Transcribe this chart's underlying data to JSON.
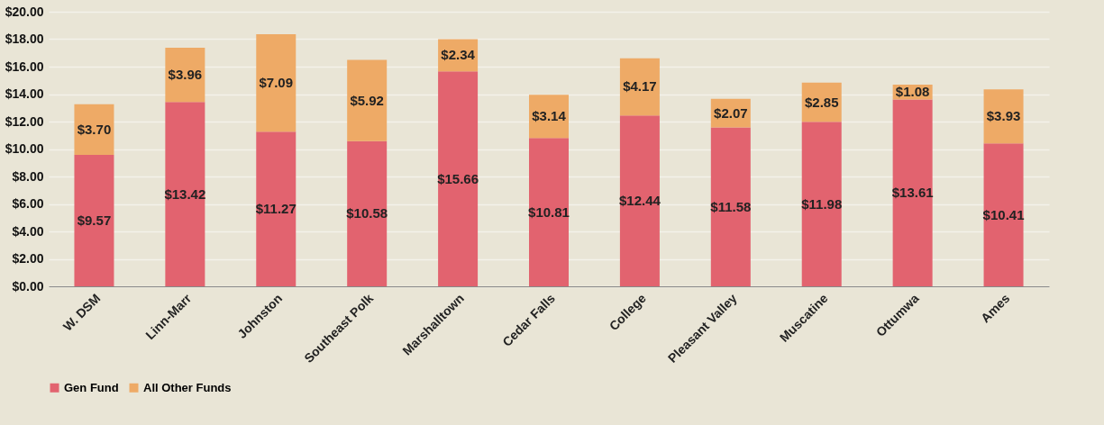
{
  "chart_data": {
    "type": "bar",
    "stacked": true,
    "categories": [
      "W. DSM",
      "Linn-Marr",
      "Johnston",
      "Southeast Polk",
      "Marshalltown",
      "Cedar Falls",
      "College",
      "Pleasant Valley",
      "Muscatine",
      "Ottumwa",
      "Ames"
    ],
    "series": [
      {
        "name": "Gen Fund",
        "color": "#e2636f",
        "values": [
          9.57,
          13.42,
          11.27,
          10.58,
          15.66,
          10.81,
          12.44,
          11.58,
          11.98,
          13.61,
          10.41
        ],
        "value_labels": [
          "$9.57",
          "$13.42",
          "$11.27",
          "$10.58",
          "$15.66",
          "$10.81",
          "$12.44",
          "$11.58",
          "$11.98",
          "$13.61",
          "$10.41"
        ]
      },
      {
        "name": "All Other Funds",
        "color": "#eeaa66",
        "values": [
          3.7,
          3.96,
          7.09,
          5.92,
          2.34,
          3.14,
          4.17,
          2.07,
          2.85,
          1.08,
          3.93
        ],
        "value_labels": [
          "$3.70",
          "$3.96",
          "$7.09",
          "$5.92",
          "$2.34",
          "$3.14",
          "$4.17",
          "$2.07",
          "$2.85",
          "$1.08",
          "$3.93"
        ]
      }
    ],
    "ylim": [
      0,
      20
    ],
    "yticks": [
      {
        "value": 0,
        "label": "$0.00"
      },
      {
        "value": 2,
        "label": "$2.00"
      },
      {
        "value": 4,
        "label": "$4.00"
      },
      {
        "value": 6,
        "label": "$6.00"
      },
      {
        "value": 8,
        "label": "$8.00"
      },
      {
        "value": 10,
        "label": "$10.00"
      },
      {
        "value": 12,
        "label": "$12.00"
      },
      {
        "value": 14,
        "label": "$14.00"
      },
      {
        "value": 16,
        "label": "$16.00"
      },
      {
        "value": 18,
        "label": "$18.00"
      },
      {
        "value": 20,
        "label": "$20.00"
      }
    ],
    "grid": "y",
    "legend": "bottom"
  }
}
